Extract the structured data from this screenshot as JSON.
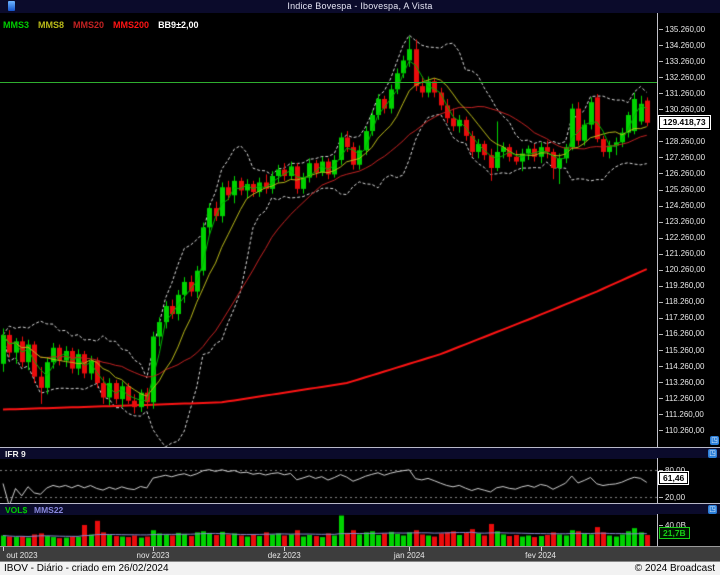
{
  "header": {
    "title": "Indice Bovespa - Ibovespa, A Vista"
  },
  "footer": {
    "left": "IBOV - Diário - criado em 26/02/2024",
    "right": "© 2024 Broadcast"
  },
  "legend": [
    {
      "label": "MMS3",
      "color": "#00cc00"
    },
    {
      "label": "MMS8",
      "color": "#b9b919"
    },
    {
      "label": "MMS20",
      "color": "#c32222"
    },
    {
      "label": "MMS200",
      "color": "#ff1414"
    },
    {
      "label": "BB9±2,00",
      "color": "#ffffff"
    }
  ],
  "ifr_panel": {
    "title": "IFR 9",
    "upper_label": "80,00",
    "lower_label": "20,00",
    "current_value": "61,46"
  },
  "vol_panel": {
    "label_left": "VOL$",
    "label_right": "MMS22",
    "axis_label": "40,0B",
    "current_value": "21,7B"
  },
  "colors": {
    "background": "#000000",
    "up": "#00d300",
    "down": "#ea0c0c",
    "mms3": "#00b400",
    "mms8": "#b9b919",
    "mms20": "#c32222",
    "mms200": "#ff1414",
    "bollinger": "#d8d8d8",
    "support": "#2fae2f",
    "ifr_line": "#d0d0d0",
    "vol_mms": "#8585cf",
    "axis_text": "#e8e8e8"
  },
  "chart_data": {
    "type": "candlestick",
    "title": "Indice Bovespa - Ibovespa, A Vista",
    "y_axis": {
      "max": 135260,
      "min": 110260,
      "step": 1000
    },
    "x_months": [
      {
        "label": "out 2023",
        "index": 0
      },
      {
        "label": "nov 2023",
        "index": 24
      },
      {
        "label": "dez 2023",
        "index": 45
      },
      {
        "label": "jan 2024",
        "index": 65
      },
      {
        "label": "fev 2024",
        "index": 86
      }
    ],
    "support_line": 132760,
    "last_price": 129418.73,
    "last_price_label": "129.418,73",
    "indicators": {
      "mms3": 3,
      "mms8": 8,
      "mms20": 20,
      "mms200": 200,
      "bb_period": 9,
      "bb_stddev": 2
    },
    "mms200_points": [
      [
        0,
        111550
      ],
      [
        20,
        111800
      ],
      [
        35,
        112000
      ],
      [
        55,
        113200
      ],
      [
        70,
        115000
      ],
      [
        85,
        117300
      ],
      [
        95,
        118900
      ],
      [
        103,
        120300
      ]
    ],
    "ifr": {
      "period": 9,
      "levels": [
        80,
        20
      ],
      "current": 61.46
    },
    "vol_mms_period": 22,
    "vol_axis_value_billions": 40,
    "candles": [
      [
        114400,
        116600,
        113900,
        116200
      ],
      [
        116200,
        116500,
        114800,
        115100
      ],
      [
        115100,
        116000,
        114400,
        115800
      ],
      [
        115800,
        116100,
        114200,
        114500
      ],
      [
        114500,
        115900,
        114000,
        115600
      ],
      [
        115600,
        115800,
        113200,
        113600
      ],
      [
        113600,
        114200,
        111900,
        112900
      ],
      [
        112900,
        114800,
        112500,
        114500
      ],
      [
        114500,
        115700,
        114100,
        115400
      ],
      [
        115400,
        115600,
        114300,
        114600
      ],
      [
        114600,
        115500,
        114200,
        115200
      ],
      [
        115200,
        115400,
        113800,
        114100
      ],
      [
        114100,
        115300,
        113700,
        115000
      ],
      [
        115000,
        115200,
        113500,
        113800
      ],
      [
        113800,
        114900,
        113400,
        114600
      ],
      [
        114600,
        114800,
        112900,
        113200
      ],
      [
        113200,
        113600,
        111900,
        112300
      ],
      [
        112300,
        113500,
        111800,
        113200
      ],
      [
        113200,
        113400,
        111900,
        112200
      ],
      [
        112200,
        113300,
        111700,
        113000
      ],
      [
        113000,
        113200,
        111900,
        112100
      ],
      [
        112100,
        112500,
        111300,
        111700
      ],
      [
        111700,
        112800,
        111400,
        112600
      ],
      [
        112600,
        112900,
        111600,
        112000
      ],
      [
        112000,
        116400,
        111600,
        116100
      ],
      [
        116100,
        117300,
        115500,
        117000
      ],
      [
        117000,
        118300,
        116600,
        118000
      ],
      [
        118000,
        118400,
        117200,
        117500
      ],
      [
        117500,
        119000,
        117100,
        118700
      ],
      [
        118700,
        119800,
        118200,
        119500
      ],
      [
        119500,
        119900,
        118600,
        118900
      ],
      [
        118900,
        120500,
        118500,
        120200
      ],
      [
        120200,
        123200,
        119900,
        122900
      ],
      [
        122900,
        124400,
        122400,
        124100
      ],
      [
        124100,
        124500,
        123300,
        123600
      ],
      [
        123600,
        125700,
        123200,
        125400
      ],
      [
        125400,
        125800,
        124600,
        124900
      ],
      [
        124900,
        126100,
        124400,
        125800
      ],
      [
        125800,
        126000,
        124900,
        125200
      ],
      [
        125200,
        125900,
        124700,
        125600
      ],
      [
        125600,
        125800,
        124800,
        125100
      ],
      [
        125100,
        126000,
        124800,
        125700
      ],
      [
        125700,
        126200,
        125000,
        125300
      ],
      [
        125300,
        126400,
        125000,
        126100
      ],
      [
        126100,
        126800,
        125700,
        126500
      ],
      [
        126500,
        126900,
        125800,
        126100
      ],
      [
        126100,
        127000,
        125900,
        126700
      ],
      [
        126700,
        126900,
        125000,
        125300
      ],
      [
        125300,
        126300,
        125000,
        126000
      ],
      [
        126000,
        127200,
        125700,
        126900
      ],
      [
        126900,
        127100,
        126000,
        126300
      ],
      [
        126300,
        127300,
        126100,
        127000
      ],
      [
        127000,
        127200,
        125900,
        126200
      ],
      [
        126200,
        127400,
        126000,
        127100
      ],
      [
        127100,
        128800,
        126800,
        128500
      ],
      [
        128500,
        128900,
        127600,
        127900
      ],
      [
        127900,
        128200,
        126500,
        126800
      ],
      [
        126800,
        128000,
        126500,
        127700
      ],
      [
        127700,
        129200,
        127400,
        128900
      ],
      [
        128900,
        130200,
        128600,
        129900
      ],
      [
        129900,
        131200,
        129600,
        130900
      ],
      [
        130900,
        131100,
        130000,
        130300
      ],
      [
        130300,
        131800,
        130000,
        131500
      ],
      [
        131500,
        132800,
        131200,
        132500
      ],
      [
        132500,
        133600,
        132200,
        133300
      ],
      [
        133300,
        134800,
        132900,
        134000
      ],
      [
        134000,
        134600,
        131400,
        131700
      ],
      [
        131700,
        132300,
        131000,
        131300
      ],
      [
        131300,
        132300,
        131000,
        132000
      ],
      [
        132000,
        132200,
        131000,
        131300
      ],
      [
        131300,
        131600,
        130200,
        130500
      ],
      [
        130500,
        130900,
        129400,
        129700
      ],
      [
        129700,
        130300,
        128900,
        129200
      ],
      [
        129200,
        129900,
        128800,
        129600
      ],
      [
        129600,
        129800,
        128300,
        128600
      ],
      [
        128600,
        128900,
        127300,
        127600
      ],
      [
        127600,
        128400,
        127200,
        128100
      ],
      [
        128100,
        128300,
        127100,
        127400
      ],
      [
        127400,
        127800,
        125800,
        126600
      ],
      [
        126600,
        129500,
        126400,
        127600
      ],
      [
        127600,
        128200,
        127200,
        127900
      ],
      [
        127900,
        128100,
        127000,
        127300
      ],
      [
        127300,
        127700,
        126800,
        127000
      ],
      [
        127000,
        127800,
        126400,
        127500
      ],
      [
        127500,
        128000,
        127100,
        127800
      ],
      [
        127800,
        128100,
        127000,
        127300
      ],
      [
        127300,
        128200,
        126900,
        127900
      ],
      [
        127900,
        128300,
        127200,
        127600
      ],
      [
        127600,
        127800,
        125900,
        126600
      ],
      [
        126600,
        127500,
        125600,
        127200
      ],
      [
        127200,
        128100,
        126900,
        127900
      ],
      [
        127900,
        130600,
        127700,
        130300
      ],
      [
        130300,
        130700,
        128000,
        128300
      ],
      [
        128300,
        129600,
        128000,
        129300
      ],
      [
        129300,
        131000,
        129000,
        130700
      ],
      [
        131000,
        131200,
        128200,
        128400
      ],
      [
        128400,
        128600,
        127300,
        127600
      ],
      [
        127600,
        128300,
        127200,
        128000
      ],
      [
        128000,
        128500,
        127400,
        128200
      ],
      [
        128200,
        129100,
        127900,
        128800
      ],
      [
        128800,
        130100,
        128500,
        129900
      ],
      [
        128900,
        131300,
        128700,
        130900
      ],
      [
        129500,
        131100,
        129300,
        130600
      ],
      [
        130800,
        131000,
        129200,
        129419
      ]
    ],
    "volumes_billions": [
      20,
      18,
      17,
      19,
      16,
      22,
      24,
      19,
      17,
      15,
      16,
      18,
      17,
      40,
      22,
      48,
      26,
      21,
      19,
      18,
      17,
      20,
      16,
      18,
      30,
      24,
      22,
      20,
      25,
      23,
      19,
      26,
      28,
      25,
      21,
      27,
      22,
      24,
      20,
      18,
      21,
      19,
      26,
      22,
      24,
      20,
      22,
      30,
      18,
      21,
      19,
      17,
      24,
      20,
      58,
      25,
      30,
      22,
      26,
      28,
      21,
      24,
      27,
      23,
      20,
      26,
      30,
      22,
      20,
      18,
      24,
      26,
      28,
      21,
      25,
      32,
      24,
      20,
      42,
      28,
      22,
      19,
      21,
      18,
      20,
      17,
      19,
      21,
      26,
      22,
      20,
      30,
      28,
      24,
      22,
      36,
      26,
      20,
      18,
      22,
      28,
      34,
      26,
      21
    ]
  }
}
